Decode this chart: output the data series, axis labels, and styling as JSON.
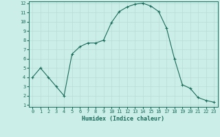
{
  "x": [
    0,
    1,
    2,
    3,
    4,
    5,
    6,
    7,
    8,
    9,
    10,
    11,
    12,
    13,
    14,
    15,
    16,
    17,
    18,
    19,
    20,
    21,
    22,
    23
  ],
  "y": [
    4,
    5,
    4,
    3,
    2,
    6.5,
    7.3,
    7.7,
    7.7,
    8,
    9.9,
    11.1,
    11.6,
    11.9,
    12,
    11.7,
    11.1,
    9.3,
    6,
    3.2,
    2.8,
    1.8,
    1.5,
    1.3
  ],
  "line_color": "#1a6b5a",
  "bg_color": "#cceee8",
  "grid_color": "#b8ddd6",
  "xlabel": "Humidex (Indice chaleur)",
  "ylim": [
    1,
    12
  ],
  "xlim": [
    -0.5,
    23.5
  ],
  "yticks": [
    1,
    2,
    3,
    4,
    5,
    6,
    7,
    8,
    9,
    10,
    11,
    12
  ],
  "xticks": [
    0,
    1,
    2,
    3,
    4,
    5,
    6,
    7,
    8,
    9,
    10,
    11,
    12,
    13,
    14,
    15,
    16,
    17,
    18,
    19,
    20,
    21,
    22,
    23
  ],
  "tick_fontsize": 5,
  "xlabel_fontsize": 6,
  "marker_size": 3,
  "line_width": 0.8
}
